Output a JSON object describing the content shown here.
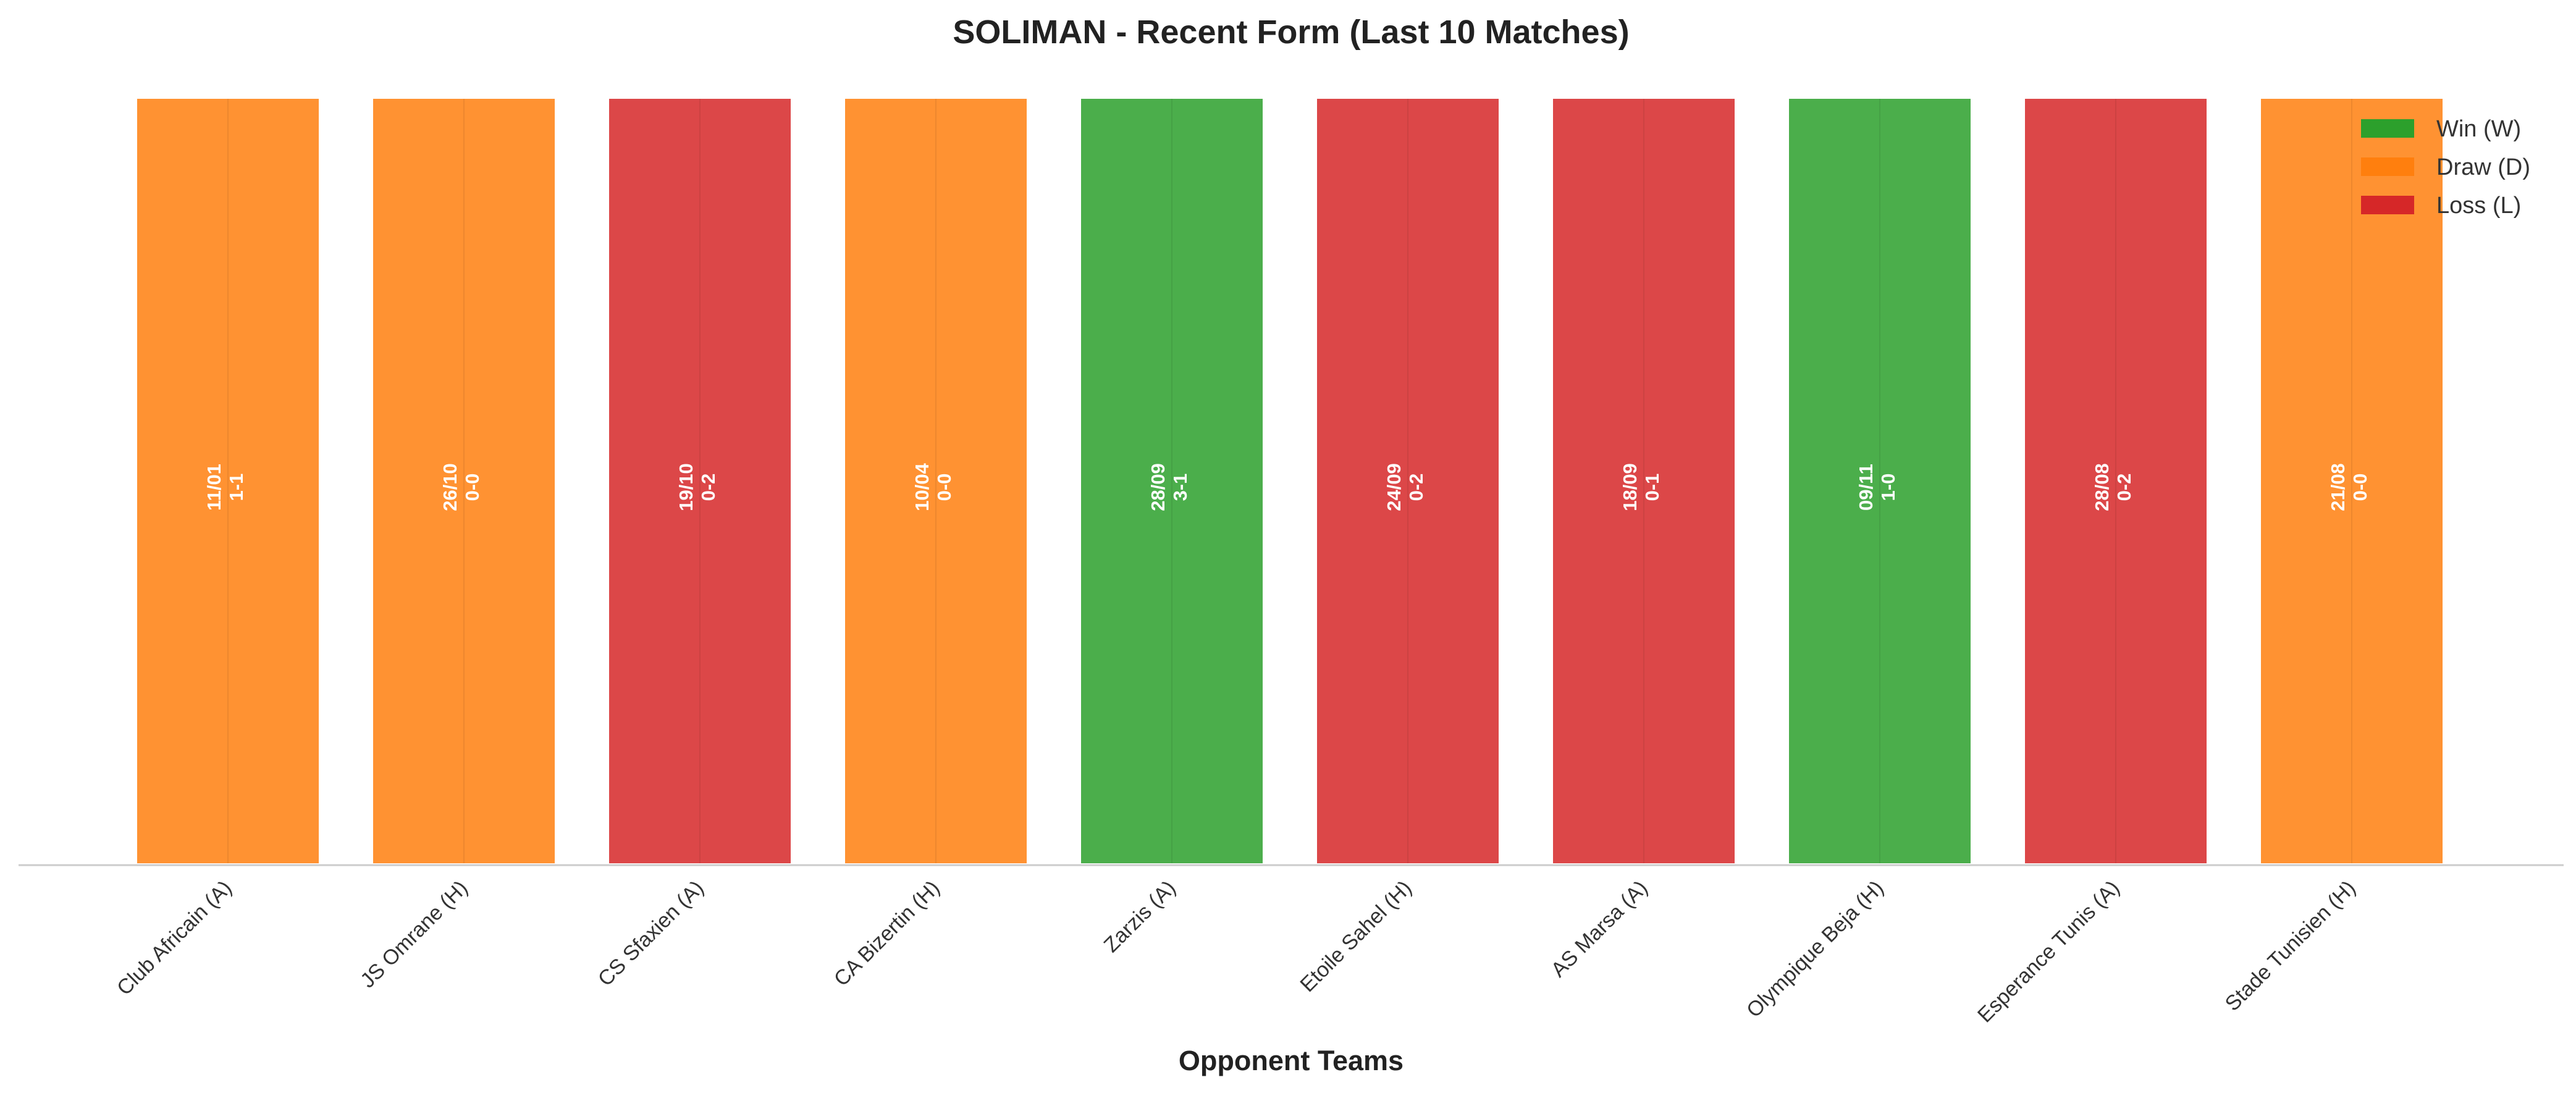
{
  "chart_data": {
    "type": "bar",
    "title": "SOLIMAN - Recent Form (Last 10 Matches)",
    "xlabel": "Opponent Teams",
    "ylabel": "",
    "categories": [
      "Club Africain (A)",
      "JS Omrane (H)",
      "CS Sfaxien (A)",
      "CA Bizertin (H)",
      "Zarzis (A)",
      "Etoile Sahel (H)",
      "AS Marsa (A)",
      "Olympique Beja (H)",
      "Esperance Tunis (A)",
      "Stade Tunisien (H)"
    ],
    "values": [
      1,
      1,
      1,
      1,
      1,
      1,
      1,
      1,
      1,
      1
    ],
    "results": [
      "D",
      "D",
      "L",
      "D",
      "W",
      "L",
      "L",
      "W",
      "L",
      "D"
    ],
    "dates": [
      "11/01",
      "26/10",
      "19/10",
      "10/04",
      "28/09",
      "24/09",
      "18/09",
      "09/11",
      "28/08",
      "21/08"
    ],
    "scores": [
      "1-1",
      "0-0",
      "0-2",
      "0-0",
      "3-1",
      "0-2",
      "0-1",
      "1-0",
      "0-2",
      "0-0"
    ],
    "colors": {
      "W": "#2ca02c",
      "D": "#ff7f0e",
      "L": "#d62728"
    },
    "ylim": [
      0,
      1
    ],
    "grid": false,
    "legend": {
      "placement": "top-right",
      "entries": [
        {
          "key": "W",
          "label": "Win (W)"
        },
        {
          "key": "D",
          "label": "Draw (D)"
        },
        {
          "key": "L",
          "label": "Loss (L)"
        }
      ]
    }
  }
}
